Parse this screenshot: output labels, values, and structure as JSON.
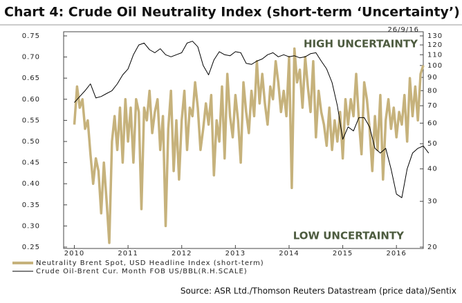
{
  "chart_data": {
    "type": "line",
    "title": "Chart 4: Crude Oil Neutrality Index (short-term ‘Uncertainty’)",
    "date_label": "26/9/16",
    "annotations": [
      "HIGH UNCERTAINTY",
      "LOW UNCERTAINTY"
    ],
    "source": "Source: ASR Ltd./Thomson Reuters Datastream (price data)/Sentix",
    "xlim": [
      2009.8,
      2016.5
    ],
    "xticks": [
      2010,
      2011,
      2012,
      2013,
      2014,
      2015,
      2016
    ],
    "ylim": [
      0.25,
      0.75
    ],
    "yticks": [
      0.25,
      {
        "value": 0.3,
        "label": "0.30"
      },
      0.35,
      {
        "value": 0.4,
        "label": "0.40"
      },
      0.45,
      {
        "value": 0.5,
        "label": "0.50"
      },
      0.55,
      {
        "value": 0.6,
        "label": "0.60"
      },
      0.65,
      {
        "value": 0.7,
        "label": "0.70"
      },
      0.75
    ],
    "y2lim": [
      20,
      130
    ],
    "y2log": true,
    "y2ticks": [
      20,
      30,
      40,
      50,
      60,
      70,
      80,
      90,
      100,
      110,
      120,
      130
    ],
    "series": [
      {
        "name": "Neutrality Brent Spot, USD Headline Index (short-term)",
        "color": "#c6b27c",
        "axis": "y",
        "x": [
          2010.0,
          2010.05,
          2010.1,
          2010.15,
          2010.2,
          2010.25,
          2010.3,
          2010.35,
          2010.4,
          2010.45,
          2010.5,
          2010.55,
          2010.6,
          2010.65,
          2010.7,
          2010.75,
          2010.8,
          2010.85,
          2010.9,
          2010.95,
          2011.0,
          2011.05,
          2011.1,
          2011.15,
          2011.2,
          2011.25,
          2011.3,
          2011.35,
          2011.4,
          2011.45,
          2011.5,
          2011.55,
          2011.6,
          2011.65,
          2011.7,
          2011.75,
          2011.8,
          2011.85,
          2011.9,
          2011.95,
          2012.0,
          2012.05,
          2012.1,
          2012.15,
          2012.2,
          2012.25,
          2012.3,
          2012.35,
          2012.4,
          2012.45,
          2012.5,
          2012.55,
          2012.6,
          2012.65,
          2012.7,
          2012.75,
          2012.8,
          2012.85,
          2012.9,
          2012.95,
          2013.0,
          2013.05,
          2013.1,
          2013.15,
          2013.2,
          2013.25,
          2013.3,
          2013.35,
          2013.4,
          2013.45,
          2013.5,
          2013.55,
          2013.6,
          2013.65,
          2013.7,
          2013.75,
          2013.8,
          2013.85,
          2013.9,
          2013.95,
          2014.0,
          2014.05,
          2014.1,
          2014.15,
          2014.2,
          2014.25,
          2014.3,
          2014.35,
          2014.4,
          2014.45,
          2014.5,
          2014.55,
          2014.6,
          2014.65,
          2014.7,
          2014.75,
          2014.8,
          2014.85,
          2014.9,
          2014.95,
          2015.0,
          2015.05,
          2015.1,
          2015.15,
          2015.2,
          2015.25,
          2015.3,
          2015.35,
          2015.4,
          2015.45,
          2015.5,
          2015.55,
          2015.6,
          2015.65,
          2015.7,
          2015.75,
          2015.8,
          2015.85,
          2015.9,
          2015.95,
          2016.0,
          2016.05,
          2016.1,
          2016.15,
          2016.2,
          2016.25,
          2016.3,
          2016.35,
          2016.4,
          2016.45,
          2016.5
        ],
        "values": [
          0.54,
          0.63,
          0.58,
          0.6,
          0.53,
          0.55,
          0.47,
          0.4,
          0.46,
          0.43,
          0.33,
          0.45,
          0.36,
          0.26,
          0.5,
          0.56,
          0.48,
          0.58,
          0.45,
          0.6,
          0.5,
          0.58,
          0.45,
          0.6,
          0.57,
          0.34,
          0.58,
          0.55,
          0.62,
          0.52,
          0.57,
          0.6,
          0.48,
          0.56,
          0.3,
          0.53,
          0.62,
          0.43,
          0.55,
          0.41,
          0.55,
          0.62,
          0.48,
          0.58,
          0.56,
          0.64,
          0.58,
          0.48,
          0.53,
          0.59,
          0.54,
          0.61,
          0.42,
          0.55,
          0.5,
          0.63,
          0.46,
          0.66,
          0.56,
          0.51,
          0.61,
          0.55,
          0.45,
          0.64,
          0.57,
          0.52,
          0.62,
          0.56,
          0.69,
          0.59,
          0.66,
          0.59,
          0.54,
          0.63,
          0.6,
          0.69,
          0.64,
          0.57,
          0.62,
          0.56,
          0.7,
          0.39,
          0.72,
          0.64,
          0.67,
          0.58,
          0.7,
          0.63,
          0.57,
          0.69,
          0.51,
          0.62,
          0.57,
          0.54,
          0.49,
          0.58,
          0.48,
          0.55,
          0.5,
          0.57,
          0.46,
          0.6,
          0.54,
          0.6,
          0.56,
          0.66,
          0.55,
          0.47,
          0.64,
          0.6,
          0.53,
          0.43,
          0.56,
          0.48,
          0.61,
          0.41,
          0.55,
          0.6,
          0.53,
          0.58,
          0.51,
          0.57,
          0.54,
          0.61,
          0.5,
          0.65,
          0.56,
          0.63,
          0.55,
          0.66,
          0.68
        ]
      },
      {
        "name": "Crude Oil-Brent Cur. Month FOB US/BBL(R.H.SCALE)",
        "color": "#000000",
        "axis": "y2",
        "x": [
          2010.0,
          2010.1,
          2010.2,
          2010.3,
          2010.4,
          2010.5,
          2010.6,
          2010.7,
          2010.8,
          2010.9,
          2011.0,
          2011.1,
          2011.2,
          2011.3,
          2011.4,
          2011.5,
          2011.6,
          2011.7,
          2011.8,
          2011.9,
          2012.0,
          2012.1,
          2012.2,
          2012.3,
          2012.4,
          2012.5,
          2012.6,
          2012.7,
          2012.8,
          2012.9,
          2013.0,
          2013.1,
          2013.2,
          2013.3,
          2013.4,
          2013.5,
          2013.6,
          2013.7,
          2013.8,
          2013.9,
          2014.0,
          2014.1,
          2014.2,
          2014.3,
          2014.4,
          2014.5,
          2014.6,
          2014.7,
          2014.8,
          2014.9,
          2015.0,
          2015.1,
          2015.2,
          2015.3,
          2015.4,
          2015.5,
          2015.6,
          2015.7,
          2015.8,
          2015.9,
          2016.0,
          2016.1,
          2016.2,
          2016.3,
          2016.4,
          2016.5,
          2016.6
        ],
        "values": [
          72,
          76,
          80,
          85,
          75,
          76,
          78,
          80,
          85,
          92,
          97,
          110,
          120,
          122,
          115,
          112,
          116,
          110,
          108,
          110,
          112,
          122,
          124,
          118,
          100,
          92,
          105,
          113,
          110,
          109,
          113,
          112,
          102,
          101,
          104,
          106,
          110,
          112,
          108,
          110,
          108,
          109,
          107,
          108,
          111,
          112,
          104,
          97,
          86,
          70,
          52,
          58,
          56,
          63,
          63,
          58,
          48,
          46,
          48,
          40,
          32,
          31,
          40,
          46,
          48,
          49,
          46
        ]
      }
    ]
  }
}
